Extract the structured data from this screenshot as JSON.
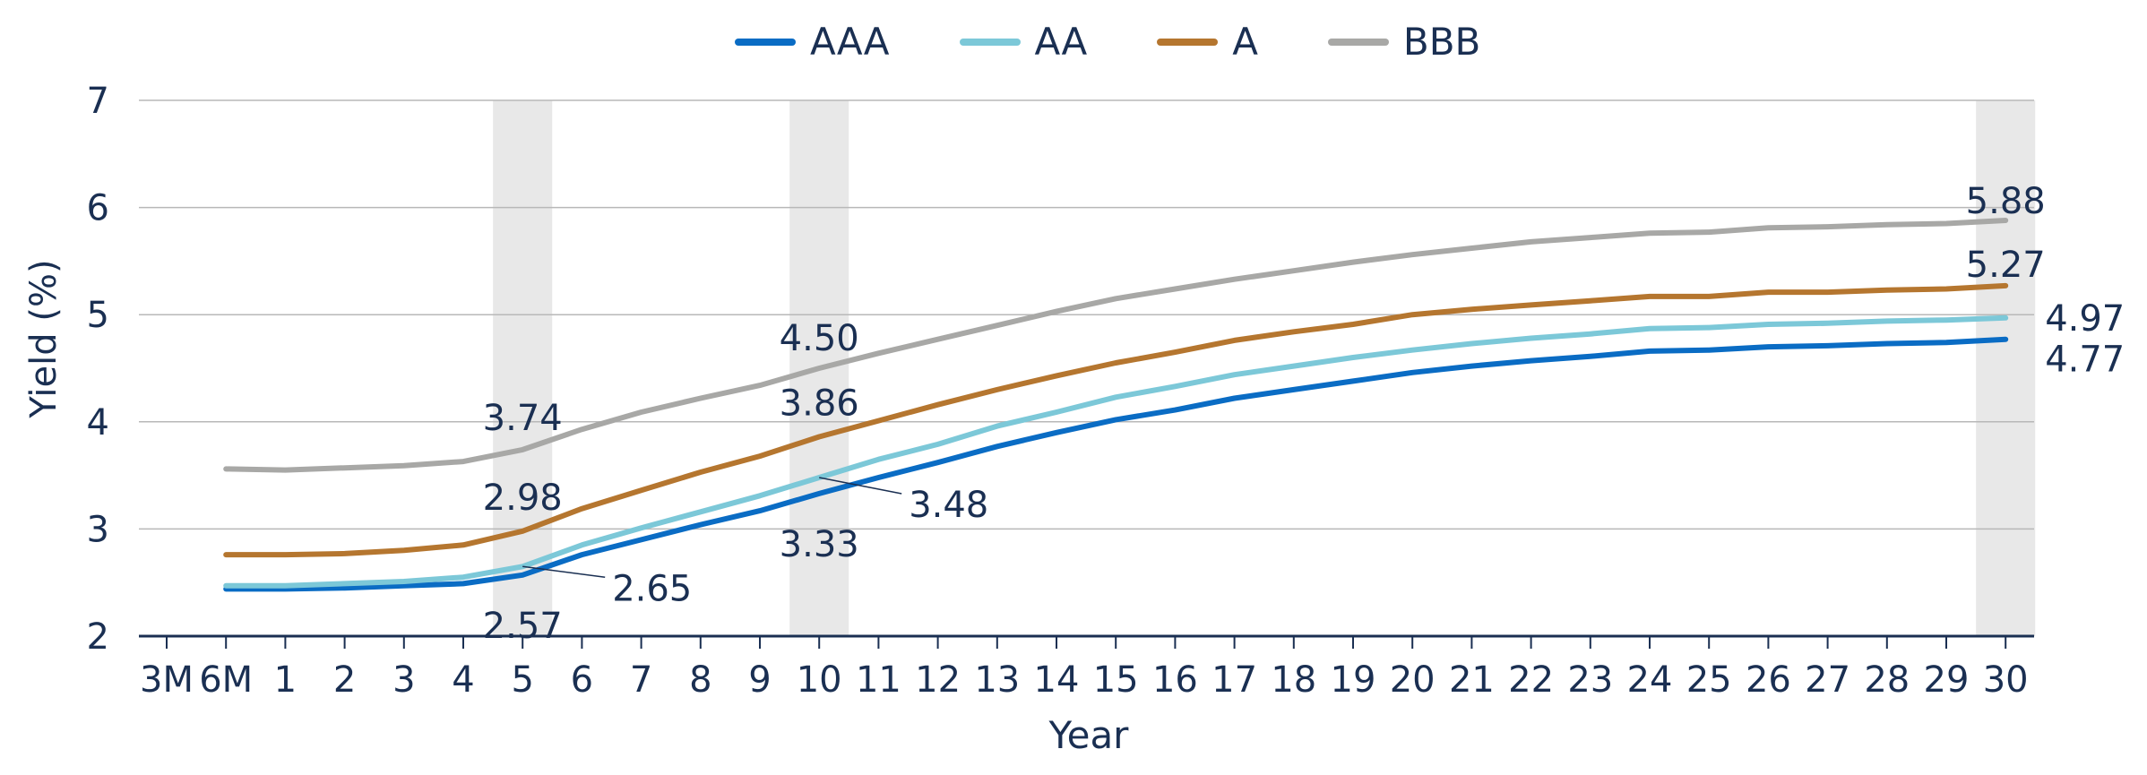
{
  "chart_data": {
    "type": "line",
    "xlabel": "Year",
    "ylabel": "Yield (%)",
    "ylim": [
      2,
      7
    ],
    "yticks": [
      "2",
      "3",
      "4",
      "5",
      "6",
      "7"
    ],
    "categories": [
      "3M",
      "6M",
      "1",
      "2",
      "3",
      "4",
      "5",
      "6",
      "7",
      "8",
      "9",
      "10",
      "11",
      "12",
      "13",
      "14",
      "15",
      "16",
      "17",
      "18",
      "19",
      "20",
      "21",
      "22",
      "23",
      "24",
      "25",
      "26",
      "27",
      "28",
      "29",
      "30"
    ],
    "highlighted_categories": [
      "5",
      "10",
      "30"
    ],
    "grid": "horizontal",
    "legend": "top-center",
    "series": [
      {
        "name": "AAA",
        "color": "#0a6cc4",
        "values": [
          null,
          2.44,
          2.44,
          2.45,
          2.47,
          2.49,
          2.57,
          2.76,
          2.9,
          3.04,
          3.17,
          3.33,
          3.48,
          3.62,
          3.77,
          3.9,
          4.02,
          4.11,
          4.22,
          4.3,
          4.38,
          4.46,
          4.52,
          4.57,
          4.61,
          4.66,
          4.67,
          4.7,
          4.71,
          4.73,
          4.74,
          4.77
        ]
      },
      {
        "name": "AA",
        "color": "#7cc8d8",
        "values": [
          null,
          2.47,
          2.47,
          2.49,
          2.51,
          2.55,
          2.65,
          2.85,
          3.01,
          3.16,
          3.31,
          3.48,
          3.65,
          3.79,
          3.96,
          4.09,
          4.23,
          4.33,
          4.44,
          4.52,
          4.6,
          4.67,
          4.73,
          4.78,
          4.82,
          4.87,
          4.88,
          4.91,
          4.92,
          4.94,
          4.95,
          4.97
        ]
      },
      {
        "name": "A",
        "color": "#b5762f",
        "values": [
          null,
          2.76,
          2.76,
          2.77,
          2.8,
          2.85,
          2.98,
          3.19,
          3.36,
          3.53,
          3.68,
          3.86,
          4.01,
          4.16,
          4.3,
          4.43,
          4.55,
          4.65,
          4.76,
          4.84,
          4.91,
          5.0,
          5.05,
          5.09,
          5.13,
          5.17,
          5.17,
          5.21,
          5.21,
          5.23,
          5.24,
          5.27
        ]
      },
      {
        "name": "BBB",
        "color": "#a8a8a6",
        "values": [
          null,
          3.56,
          3.55,
          3.57,
          3.59,
          3.63,
          3.74,
          3.93,
          4.09,
          4.22,
          4.34,
          4.5,
          4.64,
          4.77,
          4.9,
          5.03,
          5.15,
          5.24,
          5.33,
          5.41,
          5.49,
          5.56,
          5.62,
          5.68,
          5.72,
          5.76,
          5.77,
          5.81,
          5.82,
          5.84,
          5.85,
          5.88
        ]
      }
    ],
    "data_labels": [
      {
        "text": "3.74",
        "series": "BBB",
        "x": "5"
      },
      {
        "text": "2.98",
        "series": "A",
        "x": "5"
      },
      {
        "text": "2.65",
        "series": "AA",
        "x": "5"
      },
      {
        "text": "2.57",
        "series": "AAA",
        "x": "5"
      },
      {
        "text": "4.50",
        "series": "BBB",
        "x": "10"
      },
      {
        "text": "3.86",
        "series": "A",
        "x": "10"
      },
      {
        "text": "3.48",
        "series": "AA",
        "x": "10"
      },
      {
        "text": "3.33",
        "series": "AAA",
        "x": "10"
      },
      {
        "text": "5.88",
        "series": "BBB",
        "x": "30"
      },
      {
        "text": "5.27",
        "series": "A",
        "x": "30"
      },
      {
        "text": "4.97",
        "series": "AA",
        "x": "30"
      },
      {
        "text": "4.77",
        "series": "AAA",
        "x": "30"
      }
    ]
  }
}
